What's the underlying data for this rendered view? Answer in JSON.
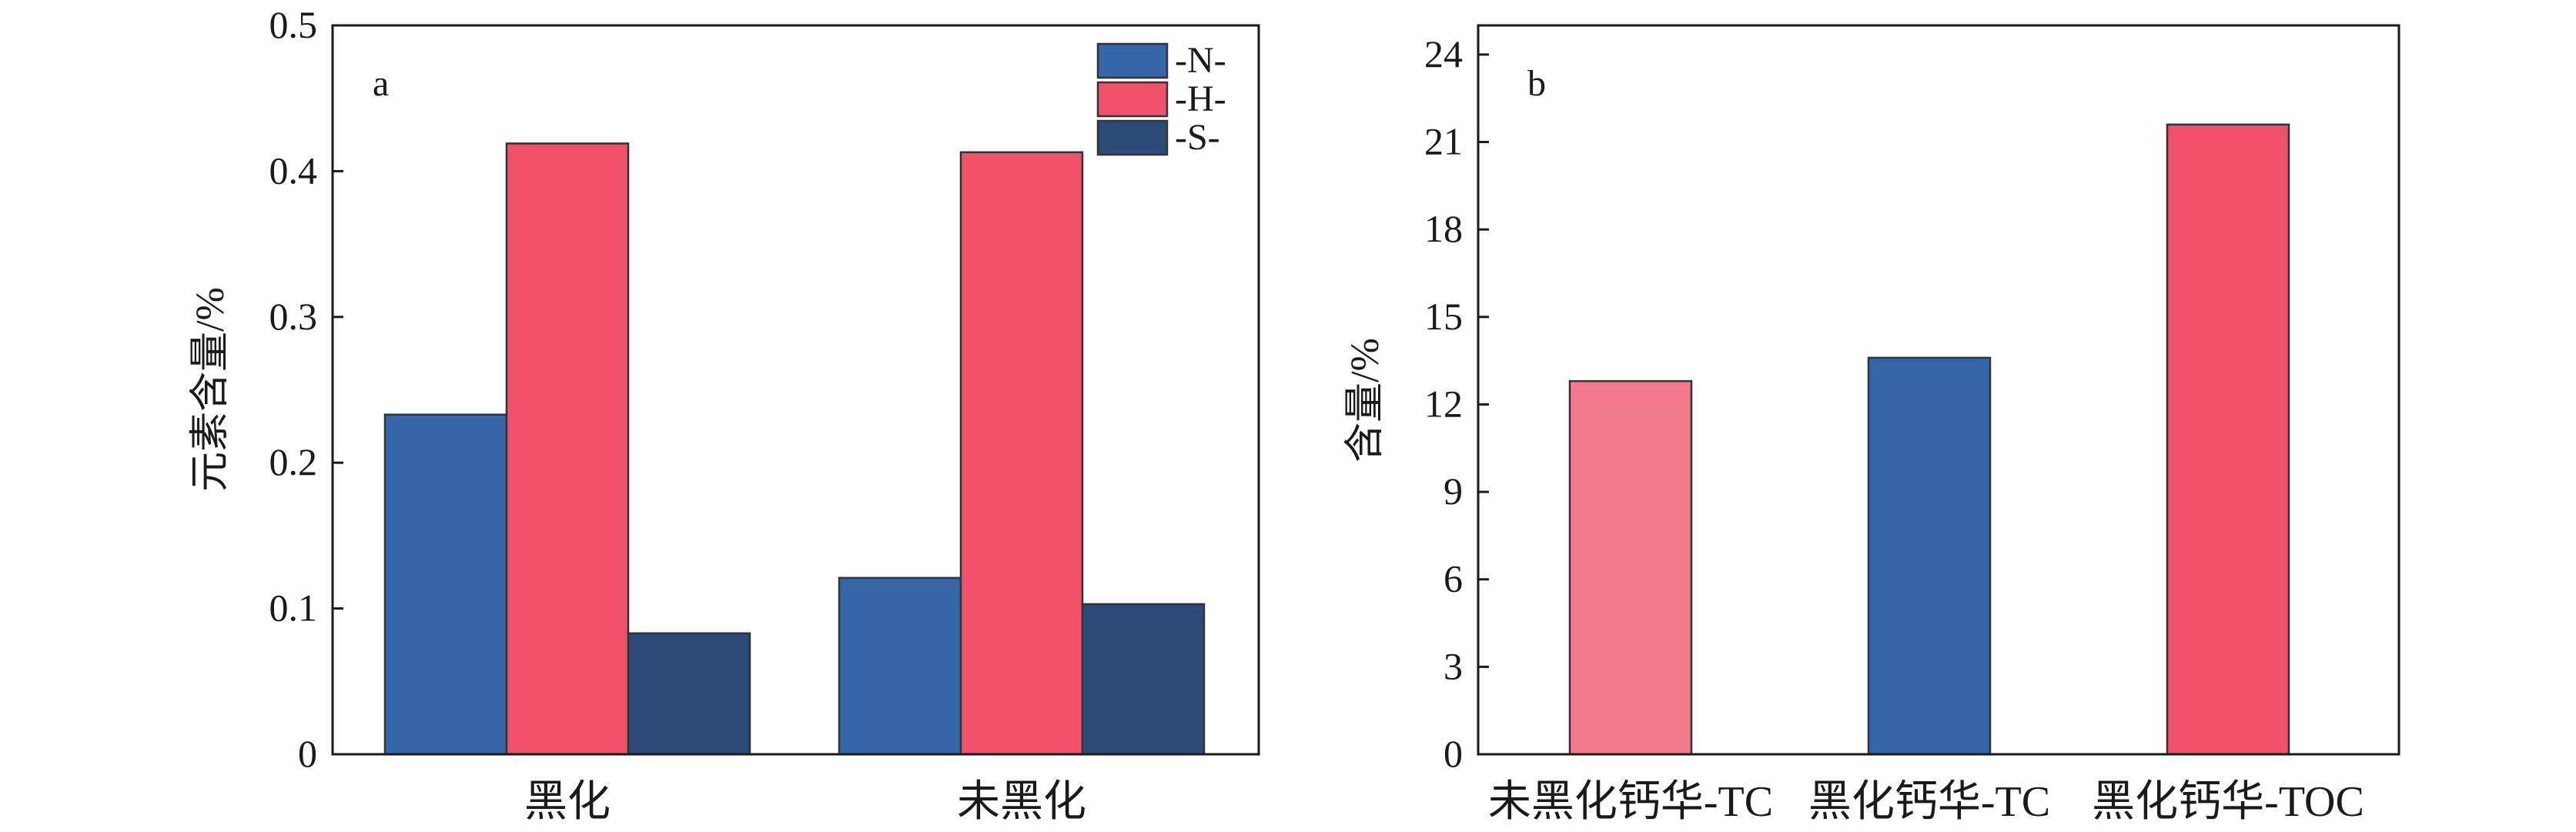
{
  "chart_data": [
    {
      "panel": "a",
      "type": "bar",
      "ylabel": "元素含量/%",
      "categories": [
        "黑化",
        "未黑化"
      ],
      "ylim": [
        0,
        0.5
      ],
      "yticks": [
        "0",
        "0.1",
        "0.2",
        "0.3",
        "0.4",
        "0.5"
      ],
      "legend_placement": "top-right",
      "series": [
        {
          "name": "-N-",
          "color": "#3566a8",
          "values": [
            0.233,
            0.121
          ]
        },
        {
          "name": "-H-",
          "color": "#f0506a",
          "values": [
            0.419,
            0.413
          ]
        },
        {
          "name": "-S-",
          "color": "#2b4a78",
          "values": [
            0.083,
            0.103
          ]
        }
      ]
    },
    {
      "panel": "b",
      "type": "bar",
      "ylabel": "含量/%",
      "ylim": [
        0,
        25
      ],
      "yticks": [
        "0",
        "3",
        "6",
        "9",
        "12",
        "15",
        "18",
        "21",
        "24"
      ],
      "categories": [
        "未黑化钙华-TC",
        "黑化钙华-TC",
        "黑化钙华-TOC"
      ],
      "values": [
        12.8,
        13.6,
        21.6
      ],
      "colors": [
        "#f27a8c",
        "#3566a8",
        "#f0506a"
      ]
    }
  ]
}
